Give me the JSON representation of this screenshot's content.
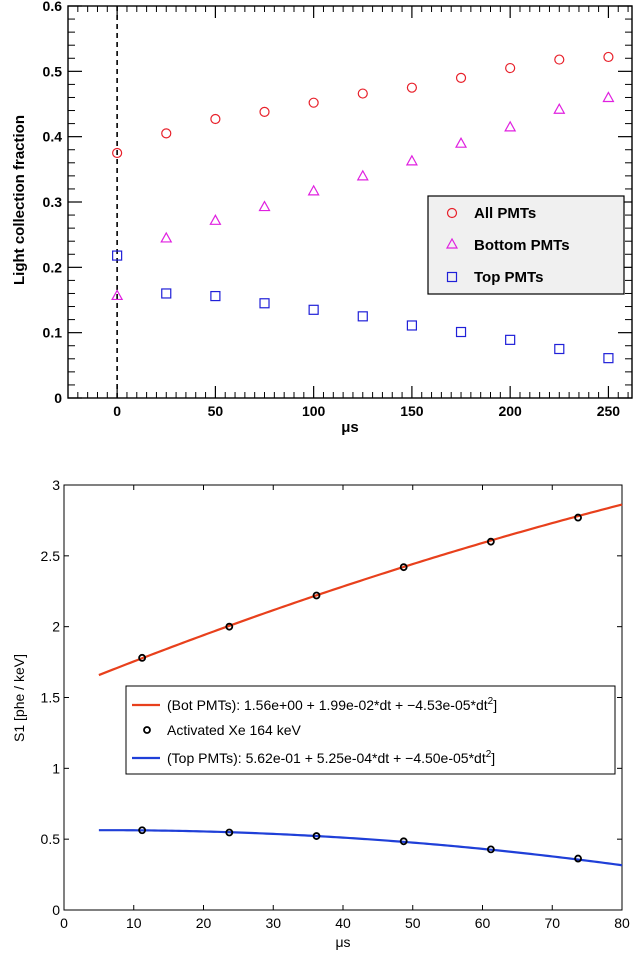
{
  "chart_data": [
    {
      "type": "scatter",
      "title": "",
      "xlabel": "μs",
      "ylabel": "Light collection fraction",
      "xlim": [
        -25,
        262
      ],
      "ylim": [
        0,
        0.6
      ],
      "x_ticks": [
        0,
        50,
        100,
        150,
        200,
        250
      ],
      "x_tick_labels": [
        "0",
        "50",
        "100",
        "150",
        "200",
        "250"
      ],
      "y_ticks": [
        0,
        0.1,
        0.2,
        0.3,
        0.4,
        0.5,
        0.6
      ],
      "y_tick_labels": [
        "0",
        "0.1",
        "0.2",
        "0.3",
        "0.4",
        "0.5",
        "0.6"
      ],
      "vertical_line_x": 0,
      "legend_position": "center-right",
      "x": [
        0,
        25,
        50,
        75,
        100,
        125,
        150,
        175,
        200,
        225,
        250
      ],
      "series": [
        {
          "name": "All PMTs",
          "marker": "circle",
          "color": "#e8202a",
          "values": [
            0.375,
            0.405,
            0.427,
            0.438,
            0.452,
            0.466,
            0.475,
            0.49,
            0.505,
            0.518,
            0.522
          ]
        },
        {
          "name": "Bottom PMTs",
          "marker": "triangle",
          "color": "#e020e0",
          "values": [
            0.157,
            0.245,
            0.272,
            0.293,
            0.317,
            0.34,
            0.363,
            0.39,
            0.415,
            0.442,
            0.46
          ]
        },
        {
          "name": "Top PMTs",
          "marker": "square",
          "color": "#2020d8",
          "values": [
            0.218,
            0.16,
            0.156,
            0.145,
            0.135,
            0.125,
            0.111,
            0.101,
            0.089,
            0.075,
            0.061
          ]
        }
      ]
    },
    {
      "type": "line",
      "title": "",
      "xlabel": "μs",
      "ylabel": "S1 [phe / keV]",
      "xlim": [
        0,
        80
      ],
      "ylim": [
        0,
        3
      ],
      "x_ticks": [
        0,
        10,
        20,
        30,
        40,
        50,
        60,
        70,
        80
      ],
      "x_tick_labels": [
        "0",
        "10",
        "20",
        "30",
        "40",
        "50",
        "60",
        "70",
        "80"
      ],
      "y_ticks": [
        0,
        0.5,
        1,
        1.5,
        2,
        2.5,
        3
      ],
      "y_tick_labels": [
        "0",
        "0.5",
        "1",
        "1.5",
        "2",
        "2.5",
        "3"
      ],
      "legend_position": "center",
      "curves": [
        {
          "name": "(Bot PMTs): 1.56e+00 + 1.99e-02*dt + −4.53e-05*dt",
          "superscript": "2",
          "color": "#e8401c",
          "x_start": 5,
          "x_end": 80,
          "c0": 1.56,
          "c1": 0.0199,
          "c2": -4.53e-05
        },
        {
          "name": "(Top PMTs): 5.62e-01 + 5.25e-04*dt + −4.50e-05*dt",
          "superscript": "2",
          "color": "#1f3fd8",
          "x_start": 5,
          "x_end": 80,
          "c0": 0.562,
          "c1": 0.000525,
          "c2": -4.5e-05
        }
      ],
      "points": {
        "name": "Activated Xe 164 keV",
        "x": [
          11.2,
          23.7,
          36.2,
          48.7,
          61.2,
          73.7
        ],
        "bot_values": [
          1.78,
          2.0,
          2.22,
          2.42,
          2.6,
          2.77
        ],
        "top_values": [
          0.563,
          0.547,
          0.522,
          0.485,
          0.428,
          0.363
        ]
      }
    }
  ]
}
